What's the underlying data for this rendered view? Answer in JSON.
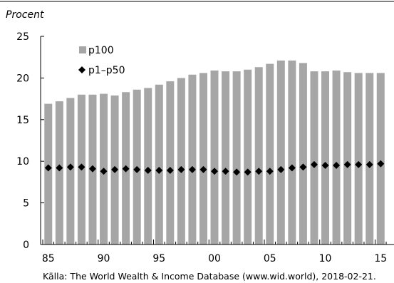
{
  "chart_data": {
    "type": "bar",
    "ylabel": "Procent",
    "ylim": [
      0,
      25
    ],
    "yticks": [
      0,
      5,
      10,
      15,
      20,
      25
    ],
    "xtick_labels": [
      "85",
      "90",
      "95",
      "00",
      "05",
      "10",
      "15"
    ],
    "x": [
      1985,
      1986,
      1987,
      1988,
      1989,
      1990,
      1991,
      1992,
      1993,
      1994,
      1995,
      1996,
      1997,
      1998,
      1999,
      2000,
      2001,
      2002,
      2003,
      2004,
      2005,
      2006,
      2007,
      2008,
      2009,
      2010,
      2011,
      2012,
      2013,
      2014,
      2015
    ],
    "series": [
      {
        "name": "p100",
        "type": "bar",
        "color": "#a6a6a6",
        "values": [
          16.9,
          17.2,
          17.6,
          18.0,
          18.0,
          18.1,
          17.9,
          18.3,
          18.6,
          18.8,
          19.2,
          19.6,
          20.0,
          20.4,
          20.6,
          20.9,
          20.8,
          20.8,
          21.0,
          21.3,
          21.7,
          22.1,
          22.1,
          21.8,
          20.8,
          20.8,
          20.9,
          20.7,
          20.6,
          20.6,
          20.6
        ]
      },
      {
        "name": "p1–p50",
        "type": "scatter",
        "marker": "diamond",
        "color": "#000000",
        "values": [
          9.2,
          9.2,
          9.3,
          9.3,
          9.1,
          8.8,
          9.0,
          9.1,
          9.0,
          8.9,
          8.9,
          8.9,
          9.0,
          9.0,
          9.0,
          8.8,
          8.8,
          8.7,
          8.7,
          8.8,
          8.8,
          9.0,
          9.2,
          9.3,
          9.6,
          9.5,
          9.5,
          9.6,
          9.6,
          9.6,
          9.7
        ]
      }
    ],
    "legend_position": "top-left",
    "grid": false,
    "source": "Källa: The World Wealth & Income Database (www.wid.world), 2018-02-21."
  }
}
